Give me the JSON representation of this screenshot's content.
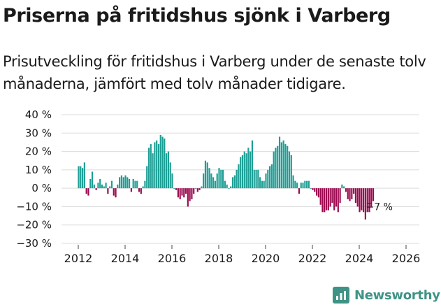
{
  "title": "Priserna på fritidshus sjönk i Varberg",
  "subtitle": "Prisutveckling för fritidshus i Varberg under de senaste tolv månaderna, jämfört med tolv månader tidigare.",
  "brand": {
    "name": "Newsworthy",
    "icon": "newsworthy-logo-icon"
  },
  "colors": {
    "positive": "#1e9e95",
    "negative": "#9a0a4f",
    "grid": "#dcdcdc",
    "brand": "#3e9386"
  },
  "chart_data": {
    "type": "bar",
    "title": "Priserna på fritidshus sjönk i Varberg",
    "xlabel": "",
    "ylabel": "",
    "ylim": [
      -30,
      40
    ],
    "y_ticks": [
      40,
      30,
      20,
      10,
      0,
      -10,
      -20,
      -30
    ],
    "y_tick_labels": [
      "40 %",
      "30 %",
      "20 %",
      "10 %",
      "0 %",
      "−10 %",
      "−20 %",
      "−30 %"
    ],
    "x_ticks": [
      "2012",
      "2014",
      "2016",
      "2018",
      "2020",
      "2022",
      "2024",
      "2026"
    ],
    "start": "2012-01",
    "x_interval": "month",
    "last_value_label": "−7 %",
    "values": [
      12,
      12,
      11,
      14,
      -3,
      -4,
      5,
      9,
      2,
      -1,
      3,
      5,
      2,
      1,
      3,
      -3,
      1,
      4,
      -4,
      -5,
      2,
      6,
      7,
      6,
      7,
      6,
      5,
      -2,
      5,
      4,
      4,
      -2,
      -3,
      1,
      4,
      12,
      22,
      24,
      19,
      25,
      26,
      24,
      29,
      28,
      27,
      19,
      20,
      14,
      8,
      0,
      -1,
      -5,
      -6,
      -4,
      -5,
      -3,
      -10,
      -7,
      -6,
      -3,
      0,
      -2,
      -1,
      1,
      8,
      15,
      14,
      11,
      8,
      6,
      4,
      8,
      11,
      10,
      10,
      4,
      2,
      0,
      1,
      6,
      7,
      10,
      13,
      17,
      18,
      20,
      19,
      22,
      20,
      26,
      10,
      10,
      10,
      6,
      4,
      4,
      8,
      10,
      12,
      13,
      20,
      22,
      23,
      28,
      25,
      26,
      24,
      23,
      20,
      18,
      7,
      4,
      3,
      -3,
      3,
      3,
      4,
      4,
      4,
      0,
      -1,
      -2,
      -4,
      -5,
      -9,
      -13,
      -13,
      -12,
      -12,
      -10,
      -8,
      -12,
      -10,
      -13,
      -8,
      2,
      1,
      -2,
      -6,
      -7,
      -6,
      -3,
      -8,
      -10,
      -13,
      -12,
      -13,
      -17,
      -13,
      -13,
      -10,
      -7
    ]
  }
}
